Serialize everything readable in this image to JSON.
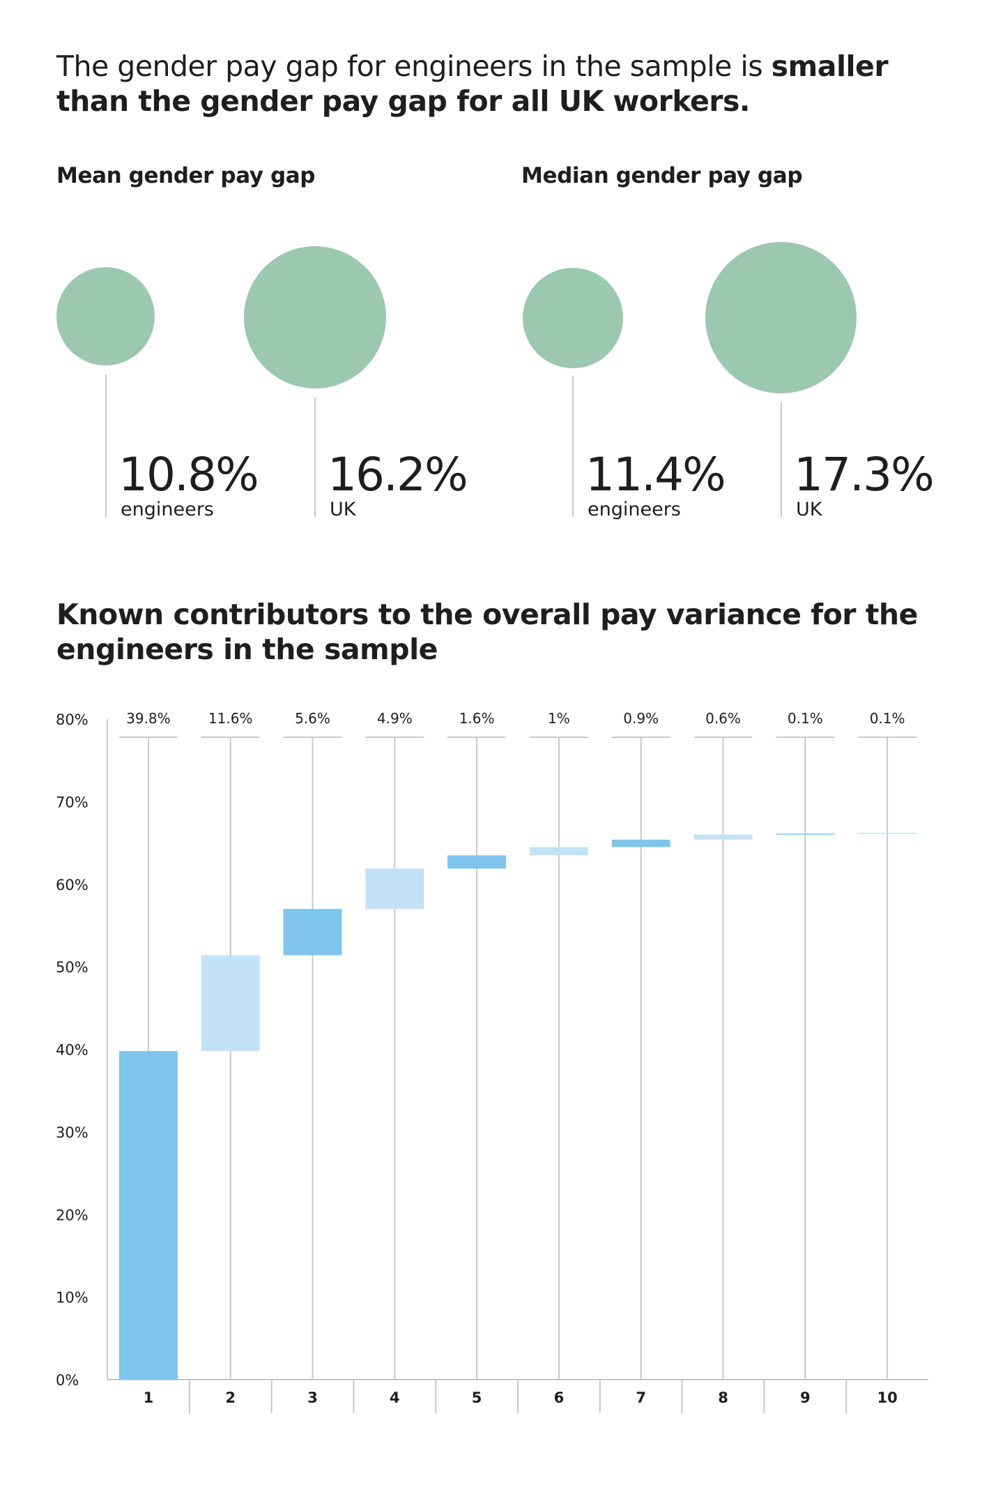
{
  "headline": {
    "plain": "The  gender pay gap for engineers in the sample is ",
    "bold": "smaller than the  gender pay gap for all UK workers."
  },
  "mean": {
    "title": "Mean gender pay gap",
    "engineers": {
      "value": "10.8%",
      "label": "engineers"
    },
    "uk": {
      "value": "16.2%",
      "label": "UK"
    }
  },
  "median": {
    "title": "Median gender pay gap",
    "engineers": {
      "value": "11.4%",
      "label": "engineers"
    },
    "uk": {
      "value": "17.3%",
      "label": "UK"
    }
  },
  "bubble_color": "#9cc8af",
  "chart_data": [
    {
      "type": "bubble",
      "title": "Mean gender pay gap",
      "categories": [
        "engineers",
        "UK"
      ],
      "values": [
        10.8,
        16.2
      ],
      "unit": "%"
    },
    {
      "type": "bubble",
      "title": "Median gender pay gap",
      "categories": [
        "engineers",
        "UK"
      ],
      "values": [
        11.4,
        17.3
      ],
      "unit": "%"
    },
    {
      "type": "bar",
      "subtype": "waterfall",
      "title": "Known contributors to the overall pay variance for the engineers in the sample",
      "categories": [
        "1",
        "2",
        "3",
        "4",
        "5",
        "6",
        "7",
        "8",
        "9",
        "10"
      ],
      "values": [
        39.8,
        11.6,
        5.6,
        4.9,
        1.6,
        1,
        0.9,
        0.6,
        0.1,
        0.1
      ],
      "value_labels": [
        "39.8%",
        "11.6%",
        "5.6%",
        "4.9%",
        "1.6%",
        "1%",
        "0.9%",
        "0.6%",
        "0.1%",
        "0.1%"
      ],
      "ylim": [
        0,
        80
      ],
      "yticks": [
        0,
        10,
        20,
        30,
        40,
        50,
        60,
        70,
        80
      ],
      "ytick_labels": [
        "0%",
        "10%",
        "20%",
        "30%",
        "40%",
        "50%",
        "60%",
        "70%",
        "80%"
      ],
      "colors": [
        "#7fc4eb",
        "#c4e2f5"
      ],
      "grid": false,
      "legend": "none"
    }
  ]
}
